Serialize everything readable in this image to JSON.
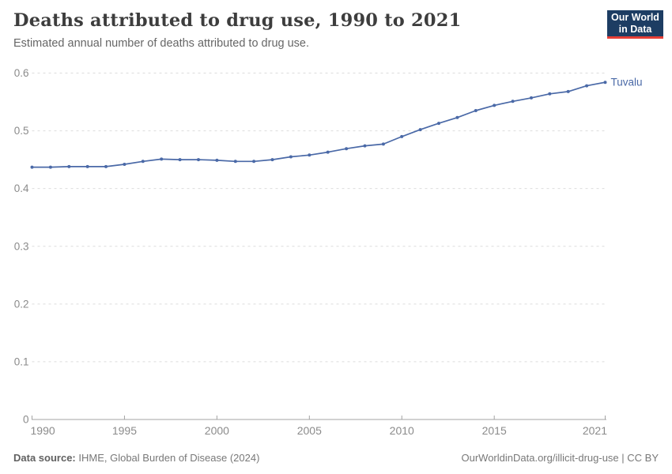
{
  "header": {
    "title": "Deaths attributed to drug use, 1990 to 2021",
    "subtitle": "Estimated annual number of deaths attributed to drug use.",
    "logo": {
      "line1": "Our World",
      "line2": "in Data",
      "bg_color": "#1d3d63",
      "accent_color": "#e63e36"
    }
  },
  "chart_data": {
    "type": "line",
    "title": "Deaths attributed to drug use, 1990 to 2021",
    "x": [
      1990,
      1991,
      1992,
      1993,
      1994,
      1995,
      1996,
      1997,
      1998,
      1999,
      2000,
      2001,
      2002,
      2003,
      2004,
      2005,
      2006,
      2007,
      2008,
      2009,
      2010,
      2011,
      2012,
      2013,
      2014,
      2015,
      2016,
      2017,
      2018,
      2019,
      2020,
      2021
    ],
    "series": [
      {
        "name": "Tuvalu",
        "color": "#4a69a7",
        "values": [
          0.437,
          0.437,
          0.438,
          0.438,
          0.438,
          0.442,
          0.447,
          0.451,
          0.45,
          0.45,
          0.449,
          0.447,
          0.447,
          0.45,
          0.455,
          0.458,
          0.463,
          0.469,
          0.474,
          0.477,
          0.49,
          0.502,
          0.513,
          0.523,
          0.535,
          0.544,
          0.551,
          0.557,
          0.564,
          0.568,
          0.578,
          0.584
        ]
      }
    ],
    "xlim": [
      1990,
      2021
    ],
    "ylim": [
      0,
      0.6
    ],
    "x_ticks": [
      1990,
      1995,
      2000,
      2005,
      2010,
      2015,
      2021
    ],
    "y_ticks": [
      0,
      0.1,
      0.2,
      0.3,
      0.4,
      0.5,
      0.6
    ],
    "y_tick_labels": [
      "0",
      "0.1",
      "0.2",
      "0.3",
      "0.4",
      "0.5",
      "0.6"
    ],
    "xlabel": "",
    "ylabel": "",
    "grid": "horizontal-dashed",
    "marker": "dot",
    "legend_position": "end-of-line-label",
    "colors": {
      "grid": "#dcdcdc",
      "axis": "#a3a3a3",
      "tick_label": "#8b8b8b"
    }
  },
  "footer": {
    "source_label": "Data source:",
    "source_text": "IHME, Global Burden of Disease (2024)",
    "link_text": "OurWorldinData.org/illicit-drug-use | CC BY"
  }
}
